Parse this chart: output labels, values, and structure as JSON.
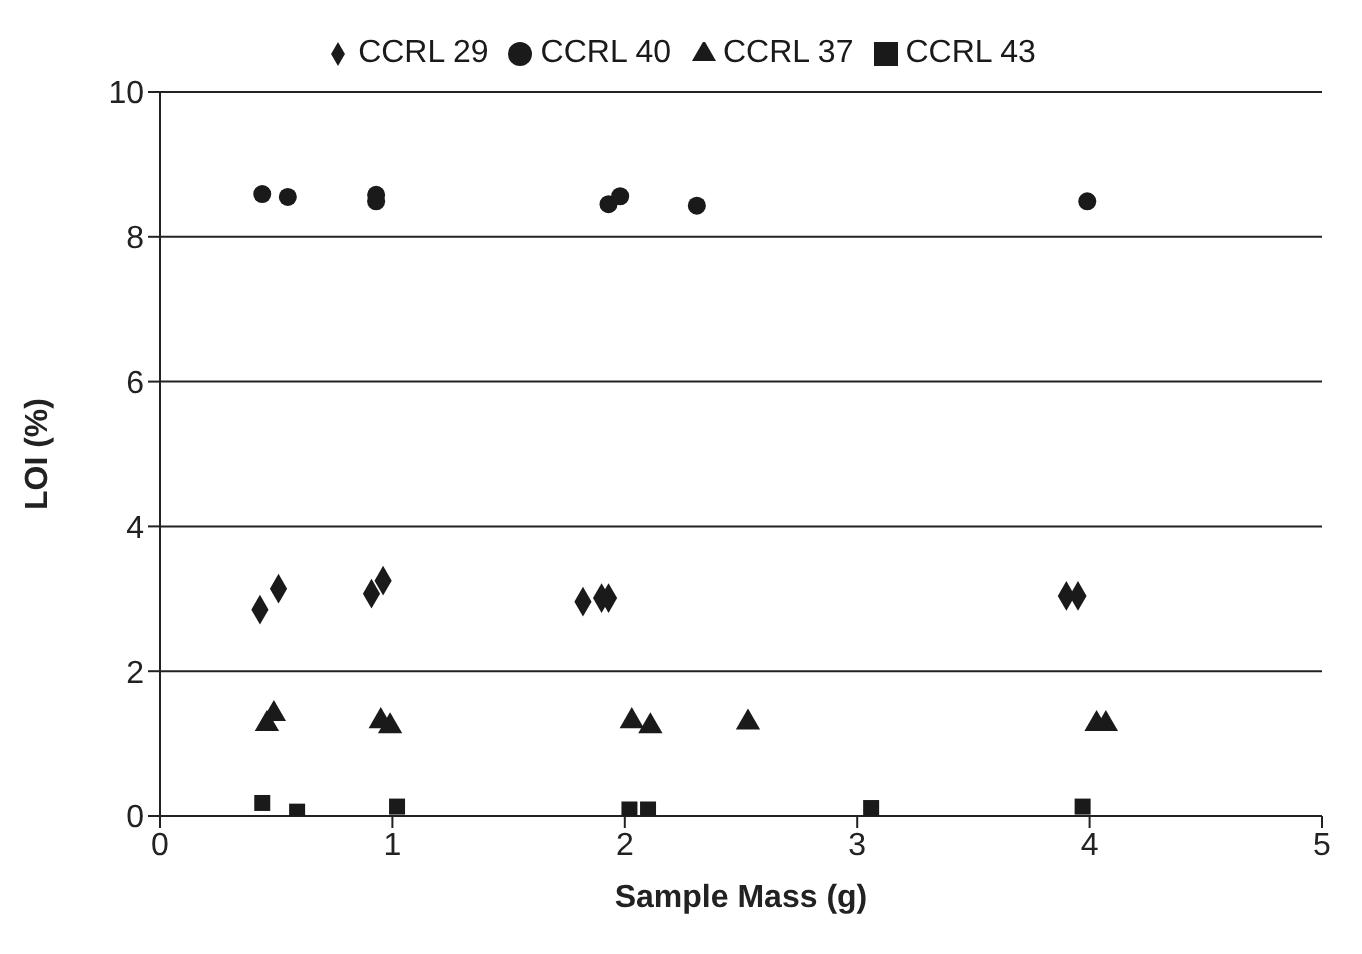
{
  "chart_data": {
    "type": "scatter",
    "xlabel": "Sample Mass (g)",
    "ylabel": "LOI (%)",
    "xlim": [
      0,
      5
    ],
    "xticks": [
      0,
      1,
      2,
      3,
      4,
      5
    ],
    "ylim": [
      0,
      10
    ],
    "yticks": [
      0,
      2,
      4,
      6,
      8,
      10
    ],
    "grid": "y",
    "legend": "top",
    "series": [
      {
        "name": "CCRL 29",
        "color": "#1a1a1a",
        "marker": "diamond",
        "x": [
          0.43,
          0.51,
          0.91,
          0.96,
          1.82,
          1.9,
          1.93,
          3.9,
          3.95
        ],
        "values": [
          2.85,
          3.14,
          3.07,
          3.25,
          2.96,
          3.01,
          3.01,
          3.04,
          3.04
        ]
      },
      {
        "name": "CCRL 40",
        "color": "#1a1a1a",
        "marker": "circle",
        "x": [
          0.44,
          0.55,
          0.93,
          0.93,
          1.93,
          1.98,
          2.31,
          3.99
        ],
        "values": [
          8.59,
          8.55,
          8.58,
          8.49,
          8.45,
          8.56,
          8.43,
          8.49
        ]
      },
      {
        "name": "CCRL 37",
        "color": "#1a1a1a",
        "marker": "triangle",
        "x": [
          0.46,
          0.49,
          0.95,
          0.99,
          2.03,
          2.11,
          2.53,
          4.03,
          4.07
        ],
        "values": [
          1.27,
          1.41,
          1.31,
          1.24,
          1.31,
          1.24,
          1.29,
          1.27,
          1.27
        ]
      },
      {
        "name": "CCRL 43",
        "color": "#1a1a1a",
        "marker": "square",
        "x": [
          0.44,
          0.59,
          1.02,
          2.02,
          2.1,
          3.06,
          3.97
        ],
        "values": [
          0.18,
          0.06,
          0.13,
          0.09,
          0.09,
          0.11,
          0.13
        ]
      }
    ]
  }
}
